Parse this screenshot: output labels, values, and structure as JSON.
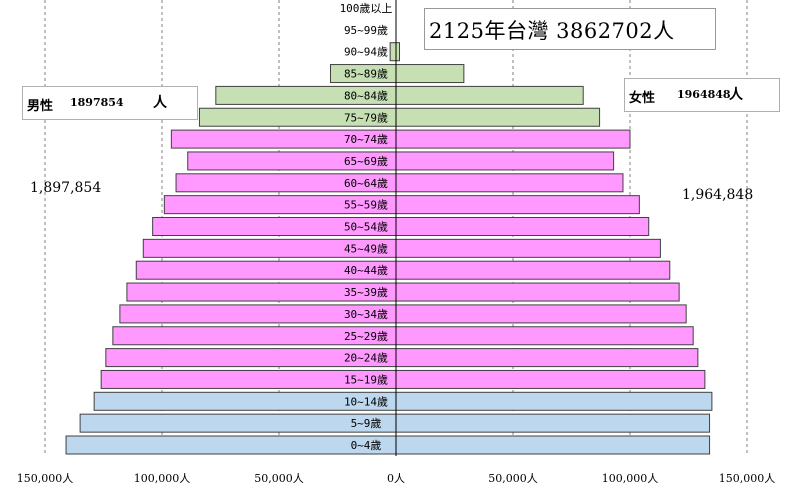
{
  "title": "2125年台灣  3862702人",
  "male": {
    "label": "男性",
    "count": "1897854",
    "unit": "人",
    "total": "1,897,854"
  },
  "female": {
    "label": "女性",
    "count": "1964848",
    "unit": "人",
    "total": "1,964,848"
  },
  "colors": {
    "young": "#bdd7ee",
    "working": "#ff99ff",
    "elderly": "#c6e0b4",
    "border": "#404040",
    "grid": "#808080"
  },
  "chart_data": {
    "type": "bar",
    "title": "2125年台灣  3862702人",
    "orientation": "horizontal population pyramid",
    "categories": [
      "0~4歲",
      "5~9歲",
      "10~14歲",
      "15~19歲",
      "20~24歲",
      "25~29歲",
      "30~34歲",
      "35~39歲",
      "40~44歲",
      "45~49歲",
      "50~54歲",
      "55~59歲",
      "60~64歲",
      "65~69歲",
      "70~74歲",
      "75~79歲",
      "80~84歲",
      "85~89歲",
      "90~94歲",
      "95~99歲",
      "100歲以上"
    ],
    "series": [
      {
        "name": "男性",
        "values": [
          141000,
          135000,
          129000,
          126000,
          124000,
          121000,
          118000,
          115000,
          111000,
          108000,
          104000,
          99000,
          94000,
          89000,
          96000,
          84000,
          77000,
          28000,
          2500,
          100,
          0
        ]
      },
      {
        "name": "女性",
        "values": [
          134000,
          134000,
          135000,
          132000,
          129000,
          127000,
          124000,
          121000,
          117000,
          113000,
          108000,
          104000,
          97000,
          93000,
          100000,
          87000,
          80000,
          29000,
          1500,
          50,
          0
        ]
      }
    ],
    "groups": {
      "young": [
        0,
        2
      ],
      "working": [
        3,
        14
      ],
      "elderly": [
        15,
        20
      ]
    },
    "xlim": [
      -150000,
      150000
    ],
    "xticks": [
      "150,000人",
      "100,000人",
      "50,000人",
      "0人",
      "50,000人",
      "100,000人",
      "150,000人"
    ],
    "grid": "dashed vertical lines every 50,000"
  }
}
